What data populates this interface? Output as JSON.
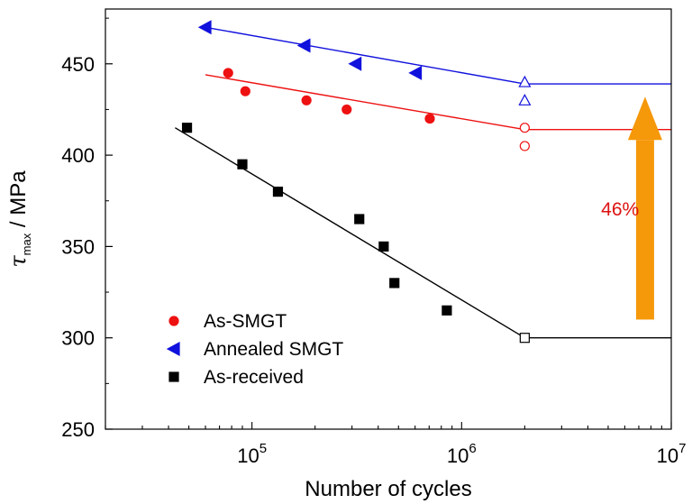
{
  "chart_data": {
    "type": "scatter",
    "xlabel": "Number of cycles",
    "ylabel": "τ",
    "ylabel_sub": "max",
    "ylabel_unit": " / MPa",
    "x_scale": "log",
    "xlim": [
      20000,
      10000000
    ],
    "ylim": [
      250,
      480
    ],
    "y_ticks": [
      250,
      300,
      350,
      400,
      450
    ],
    "x_ticks": [
      {
        "value": 100000,
        "base": "10",
        "exp": "5"
      },
      {
        "value": 1000000,
        "base": "10",
        "exp": "6"
      },
      {
        "value": 10000000,
        "base": "10",
        "exp": "7"
      }
    ],
    "grid": false,
    "legend_position": "bottom-left",
    "series": [
      {
        "name": "As-SMGT",
        "marker": "circle",
        "color": "#ee1111",
        "points": [
          [
            77000,
            445
          ],
          [
            93000,
            435
          ],
          [
            182000,
            430
          ],
          [
            283000,
            425
          ],
          [
            705000,
            420
          ]
        ],
        "runouts": [
          [
            2000000,
            415
          ],
          [
            2000000,
            405
          ]
        ],
        "fit": [
          [
            60000,
            444
          ],
          [
            2000000,
            414
          ]
        ],
        "endurance": [
          [
            2000000,
            414
          ],
          [
            10000000,
            414
          ]
        ]
      },
      {
        "name": "Annealed SMGT",
        "marker": "triangle-left",
        "color": "#1111dd",
        "points": [
          [
            60000,
            470
          ],
          [
            178000,
            460
          ],
          [
            312000,
            450
          ],
          [
            605000,
            445
          ]
        ],
        "runouts": [
          [
            2000000,
            440
          ],
          [
            2000000,
            430
          ]
        ],
        "fit": [
          [
            60000,
            470
          ],
          [
            2000000,
            439
          ]
        ],
        "endurance": [
          [
            2000000,
            439
          ],
          [
            10000000,
            439
          ]
        ]
      },
      {
        "name": "As-received",
        "marker": "square",
        "color": "#000000",
        "points": [
          [
            49000,
            415
          ],
          [
            90000,
            395
          ],
          [
            133000,
            380
          ],
          [
            325000,
            365
          ],
          [
            425000,
            350
          ],
          [
            478000,
            330
          ],
          [
            850000,
            315
          ]
        ],
        "runouts": [
          [
            2000000,
            300
          ]
        ],
        "fit": [
          [
            43000,
            415
          ],
          [
            2000000,
            300
          ]
        ],
        "endurance": [
          [
            2000000,
            300
          ],
          [
            10000000,
            300
          ]
        ]
      }
    ],
    "annotations": [
      {
        "text": "46%",
        "color": "#dd1111",
        "x": 5700000,
        "y": 371
      },
      {
        "type": "arrow",
        "color": "#f5980a",
        "x": 7500000,
        "y_from": 310,
        "y_to": 432
      }
    ]
  }
}
